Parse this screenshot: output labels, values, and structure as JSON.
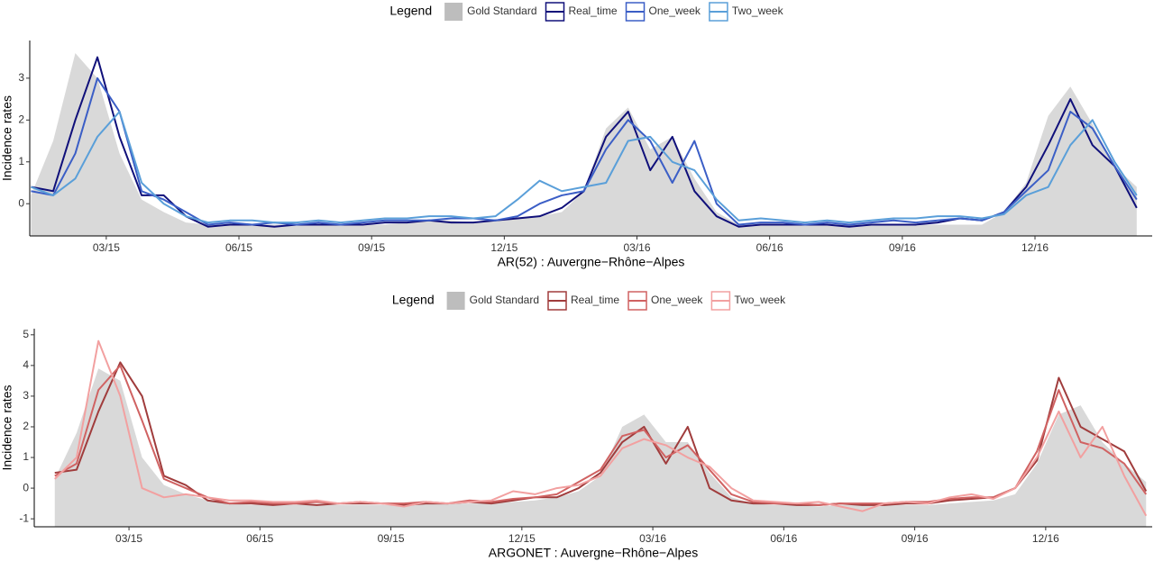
{
  "chart_data": [
    {
      "type": "line",
      "legend_title": "Legend",
      "x_label": "AR(52) : Auvergne−Rhône−Alpes",
      "y_label": "Incidence rates",
      "x": [
        0.3,
        0.8,
        1.3,
        1.8,
        2.3,
        2.8,
        3.3,
        3.8,
        4.3,
        4.8,
        5.3,
        5.8,
        6.3,
        6.8,
        7.3,
        7.8,
        8.3,
        8.8,
        9.3,
        9.8,
        10.3,
        10.8,
        11.3,
        11.8,
        12.3,
        12.8,
        13.3,
        13.8,
        14.3,
        14.8,
        15.3,
        15.8,
        16.3,
        16.8,
        17.3,
        17.8,
        18.3,
        18.8,
        19.3,
        19.8,
        20.3,
        20.8,
        21.3,
        21.8,
        22.3,
        22.8,
        23.3,
        23.8,
        24.3,
        24.8,
        25.3
      ],
      "xlim": [
        0.27,
        25.65
      ],
      "xticks": [
        {
          "value": 2,
          "label": "03/15"
        },
        {
          "value": 5,
          "label": "06/15"
        },
        {
          "value": 8,
          "label": "09/15"
        },
        {
          "value": 11,
          "label": "12/15"
        },
        {
          "value": 14,
          "label": "03/16"
        },
        {
          "value": 17,
          "label": "06/16"
        },
        {
          "value": 20,
          "label": "09/16"
        },
        {
          "value": 23,
          "label": "12/16"
        }
      ],
      "ylim": [
        -0.77,
        3.9
      ],
      "yticks": [
        0,
        1,
        2,
        3
      ],
      "area": {
        "name": "Gold Standard",
        "color": "#d9d9d9",
        "values": [
          0.2,
          1.5,
          3.6,
          3.0,
          1.2,
          0.1,
          -0.2,
          -0.45,
          -0.5,
          -0.5,
          -0.5,
          -0.5,
          -0.5,
          -0.5,
          -0.5,
          -0.5,
          -0.5,
          -0.45,
          -0.4,
          -0.4,
          -0.45,
          -0.4,
          -0.35,
          -0.3,
          -0.2,
          0.3,
          1.8,
          2.3,
          1.3,
          1.6,
          0.6,
          -0.2,
          -0.5,
          -0.5,
          -0.5,
          -0.5,
          -0.5,
          -0.5,
          -0.5,
          -0.5,
          -0.5,
          -0.5,
          -0.5,
          -0.5,
          -0.2,
          0.5,
          2.1,
          2.8,
          1.9,
          0.9,
          0.4
        ]
      },
      "series": [
        {
          "name": "Real_time",
          "color": "#10107a",
          "values": [
            0.4,
            0.3,
            2.0,
            3.5,
            1.6,
            0.2,
            0.2,
            -0.3,
            -0.55,
            -0.5,
            -0.5,
            -0.55,
            -0.5,
            -0.5,
            -0.5,
            -0.5,
            -0.45,
            -0.45,
            -0.4,
            -0.45,
            -0.45,
            -0.4,
            -0.35,
            -0.3,
            -0.1,
            0.3,
            1.6,
            2.2,
            0.8,
            1.6,
            0.3,
            -0.3,
            -0.55,
            -0.5,
            -0.5,
            -0.5,
            -0.5,
            -0.55,
            -0.5,
            -0.5,
            -0.5,
            -0.45,
            -0.35,
            -0.4,
            -0.2,
            0.4,
            1.4,
            2.5,
            1.4,
            0.9,
            -0.1
          ]
        },
        {
          "name": "One_week",
          "color": "#3b5ec6",
          "values": [
            0.3,
            0.2,
            1.2,
            3.0,
            2.2,
            0.3,
            0.1,
            -0.2,
            -0.5,
            -0.45,
            -0.5,
            -0.45,
            -0.5,
            -0.45,
            -0.5,
            -0.45,
            -0.4,
            -0.4,
            -0.4,
            -0.35,
            -0.35,
            -0.4,
            -0.3,
            0.0,
            0.2,
            0.3,
            1.3,
            2.0,
            1.5,
            0.5,
            1.5,
            0.0,
            -0.5,
            -0.45,
            -0.45,
            -0.5,
            -0.45,
            -0.5,
            -0.45,
            -0.4,
            -0.45,
            -0.4,
            -0.35,
            -0.4,
            -0.2,
            0.3,
            0.8,
            2.2,
            1.8,
            0.9,
            0.1
          ]
        },
        {
          "name": "Two_week",
          "color": "#5a9fd9",
          "values": [
            0.4,
            0.2,
            0.6,
            1.6,
            2.2,
            0.5,
            0.0,
            -0.3,
            -0.45,
            -0.4,
            -0.4,
            -0.45,
            -0.45,
            -0.4,
            -0.45,
            -0.4,
            -0.35,
            -0.35,
            -0.3,
            -0.3,
            -0.35,
            -0.3,
            0.1,
            0.55,
            0.3,
            0.4,
            0.5,
            1.5,
            1.6,
            1.0,
            0.8,
            0.1,
            -0.4,
            -0.35,
            -0.4,
            -0.45,
            -0.4,
            -0.45,
            -0.4,
            -0.35,
            -0.35,
            -0.3,
            -0.3,
            -0.35,
            -0.25,
            0.2,
            0.4,
            1.4,
            2.0,
            1.0,
            0.2
          ]
        }
      ]
    },
    {
      "type": "line",
      "legend_title": "Legend",
      "x_label": "ARGONET : Auvergne−Rhône−Alpes",
      "y_label": "Incidence rates",
      "x": [
        0.3,
        0.8,
        1.3,
        1.8,
        2.3,
        2.8,
        3.3,
        3.8,
        4.3,
        4.8,
        5.3,
        5.8,
        6.3,
        6.8,
        7.3,
        7.8,
        8.3,
        8.8,
        9.3,
        9.8,
        10.3,
        10.8,
        11.3,
        11.8,
        12.3,
        12.8,
        13.3,
        13.8,
        14.3,
        14.8,
        15.3,
        15.8,
        16.3,
        16.8,
        17.3,
        17.8,
        18.3,
        18.8,
        19.3,
        19.8,
        20.3,
        20.8,
        21.3,
        21.8,
        22.3,
        22.8,
        23.3,
        23.8,
        24.3,
        24.8,
        25.3
      ],
      "xlim": [
        -0.17,
        25.44
      ],
      "xticks": [
        {
          "value": 2,
          "label": "03/15"
        },
        {
          "value": 5,
          "label": "06/15"
        },
        {
          "value": 8,
          "label": "09/15"
        },
        {
          "value": 11,
          "label": "12/15"
        },
        {
          "value": 14,
          "label": "03/16"
        },
        {
          "value": 17,
          "label": "06/16"
        },
        {
          "value": 20,
          "label": "09/16"
        },
        {
          "value": 23,
          "label": "12/16"
        }
      ],
      "ylim": [
        -1.26,
        5.2
      ],
      "yticks": [
        -1,
        0,
        1,
        2,
        3,
        4,
        5
      ],
      "area": {
        "name": "Gold Standard",
        "color": "#d9d9d9",
        "values": [
          0.3,
          1.8,
          3.9,
          3.5,
          1.0,
          0.1,
          -0.2,
          -0.4,
          -0.5,
          -0.55,
          -0.55,
          -0.55,
          -0.55,
          -0.55,
          -0.55,
          -0.55,
          -0.55,
          -0.5,
          -0.5,
          -0.5,
          -0.5,
          -0.45,
          -0.4,
          -0.3,
          -0.1,
          0.4,
          2.0,
          2.4,
          1.5,
          1.5,
          0.5,
          -0.3,
          -0.5,
          -0.55,
          -0.55,
          -0.6,
          -0.55,
          -0.55,
          -0.55,
          -0.55,
          -0.55,
          -0.5,
          -0.45,
          -0.4,
          -0.2,
          0.8,
          2.4,
          2.7,
          1.5,
          0.8,
          0.2
        ]
      },
      "series": [
        {
          "name": "Real_time",
          "color": "#a03c3c",
          "values": [
            0.5,
            0.6,
            2.5,
            4.1,
            3.0,
            0.4,
            0.1,
            -0.4,
            -0.5,
            -0.5,
            -0.55,
            -0.5,
            -0.55,
            -0.5,
            -0.5,
            -0.5,
            -0.55,
            -0.5,
            -0.5,
            -0.45,
            -0.5,
            -0.4,
            -0.3,
            -0.3,
            0.0,
            0.5,
            1.5,
            2.0,
            0.8,
            2.0,
            0.0,
            -0.4,
            -0.5,
            -0.5,
            -0.55,
            -0.55,
            -0.5,
            -0.55,
            -0.55,
            -0.5,
            -0.5,
            -0.4,
            -0.35,
            -0.3,
            0.0,
            0.9,
            3.6,
            2.0,
            1.6,
            1.2,
            -0.1
          ]
        },
        {
          "name": "One_week",
          "color": "#d06262",
          "values": [
            0.4,
            0.8,
            3.2,
            4.0,
            2.2,
            0.3,
            0.0,
            -0.3,
            -0.5,
            -0.45,
            -0.5,
            -0.5,
            -0.45,
            -0.5,
            -0.45,
            -0.5,
            -0.5,
            -0.45,
            -0.5,
            -0.4,
            -0.45,
            -0.35,
            -0.3,
            -0.2,
            0.2,
            0.6,
            1.7,
            1.9,
            1.0,
            1.4,
            0.6,
            -0.2,
            -0.45,
            -0.5,
            -0.5,
            -0.55,
            -0.5,
            -0.5,
            -0.5,
            -0.45,
            -0.45,
            -0.35,
            -0.3,
            -0.3,
            0.0,
            1.2,
            3.2,
            1.5,
            1.3,
            0.8,
            -0.2
          ]
        },
        {
          "name": "Two_week",
          "color": "#f2a0a0",
          "values": [
            0.3,
            1.0,
            4.8,
            3.0,
            0.0,
            -0.3,
            -0.2,
            -0.3,
            -0.4,
            -0.4,
            -0.45,
            -0.45,
            -0.4,
            -0.5,
            -0.45,
            -0.5,
            -0.6,
            -0.45,
            -0.5,
            -0.45,
            -0.4,
            -0.1,
            -0.2,
            0.0,
            0.1,
            0.4,
            1.3,
            1.6,
            1.4,
            1.0,
            0.7,
            0.0,
            -0.4,
            -0.45,
            -0.5,
            -0.45,
            -0.6,
            -0.75,
            -0.5,
            -0.45,
            -0.5,
            -0.3,
            -0.2,
            -0.35,
            0.0,
            1.0,
            2.5,
            1.0,
            2.0,
            0.4,
            -0.9
          ]
        }
      ]
    }
  ]
}
